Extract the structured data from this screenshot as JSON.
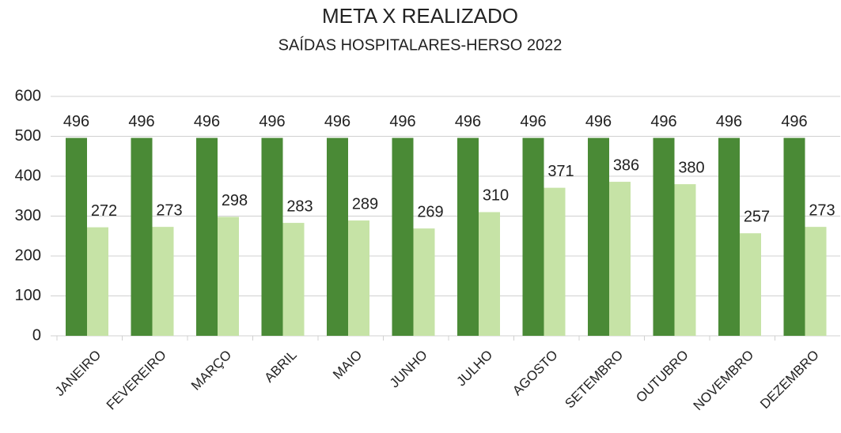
{
  "chart_data": {
    "type": "bar",
    "title": "META X REALIZADO",
    "subtitle": "SAÍDAS HOSPITALARES-HERSO 2022",
    "categories": [
      "JANEIRO",
      "FEVEREIRO",
      "MARÇO",
      "ABRIL",
      "MAIO",
      "JUNHO",
      "JULHO",
      "AGOSTO",
      "SETEMBRO",
      "OUTUBRO",
      "NOVEMBRO",
      "DEZEMBRO"
    ],
    "series": [
      {
        "color": "#4a8a36",
        "values": [
          496,
          496,
          496,
          496,
          496,
          496,
          496,
          496,
          496,
          496,
          496,
          496
        ]
      },
      {
        "color": "#c6e3a6",
        "values": [
          272,
          273,
          298,
          283,
          289,
          269,
          310,
          371,
          386,
          380,
          257,
          273
        ]
      }
    ],
    "ylim": [
      0,
      600
    ],
    "yticks": [
      0,
      100,
      200,
      300,
      400,
      500,
      600
    ],
    "grid": true
  }
}
